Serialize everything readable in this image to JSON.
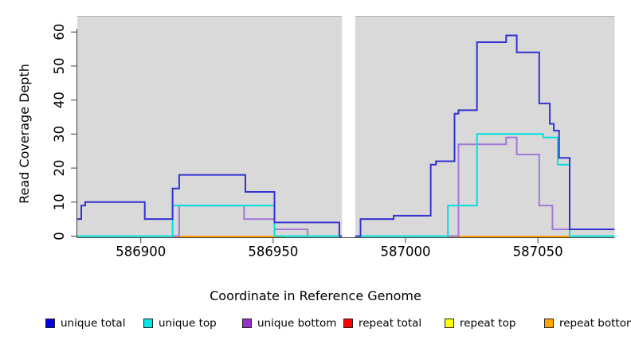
{
  "chart_data": {
    "type": "line",
    "subtype": "step-coverage",
    "title": "",
    "xlabel": "Coordinate in Reference Genome",
    "ylabel": "Read Coverage Depth",
    "xlim": [
      586876,
      587079
    ],
    "ylim": [
      0,
      63
    ],
    "x_ticks": [
      586900,
      586950,
      587000,
      587050
    ],
    "y_ticks": [
      0,
      10,
      20,
      30,
      40,
      50,
      60
    ],
    "grid": false,
    "plot_background": "#d9d9d9",
    "gap_region": [
      586976,
      586981
    ],
    "baseline": {
      "value": 0,
      "color": "#90ee90"
    },
    "series": [
      {
        "name": "unique total",
        "color": "#3232d2",
        "steps": [
          [
            586876,
            5
          ],
          [
            586877.5,
            9
          ],
          [
            586879,
            10
          ],
          [
            586901.5,
            5
          ],
          [
            586912,
            14
          ],
          [
            586914.5,
            18
          ],
          [
            586939.5,
            13
          ],
          [
            586950.5,
            4
          ],
          [
            586975,
            0
          ],
          [
            586983,
            5
          ],
          [
            586995.5,
            6
          ],
          [
            587009.5,
            21
          ],
          [
            587011.5,
            22
          ],
          [
            587018.5,
            36
          ],
          [
            587020,
            37
          ],
          [
            587027,
            57
          ],
          [
            587038,
            59
          ],
          [
            587042,
            54
          ],
          [
            587050.5,
            39
          ],
          [
            587054.5,
            33
          ],
          [
            587056,
            31
          ],
          [
            587058,
            23
          ],
          [
            587062,
            2
          ]
        ]
      },
      {
        "name": "unique top",
        "color": "#00e0e0",
        "steps": [
          [
            586876,
            0
          ],
          [
            586912,
            9
          ],
          [
            586950.5,
            0
          ],
          [
            587016,
            9
          ],
          [
            587027,
            30
          ],
          [
            587052,
            29
          ],
          [
            587057.5,
            21
          ],
          [
            587062,
            0
          ]
        ]
      },
      {
        "name": "unique bottom",
        "color": "#a478d8",
        "steps": [
          [
            586876,
            0
          ],
          [
            586914.5,
            9
          ],
          [
            586939,
            5
          ],
          [
            586950.5,
            2
          ],
          [
            586963,
            0
          ],
          [
            587020,
            27
          ],
          [
            587038,
            29
          ],
          [
            587042,
            24
          ],
          [
            587050.5,
            9
          ],
          [
            587055.5,
            2
          ]
        ]
      },
      {
        "name": "repeat total",
        "color": "#e00000",
        "steps": [
          [
            586876,
            0
          ]
        ]
      },
      {
        "name": "repeat top",
        "color": "#ffff00",
        "steps": [
          [
            586876,
            0
          ]
        ]
      },
      {
        "name": "repeat bottom",
        "color": "#ff9d00",
        "steps": [
          [
            586876,
            0
          ]
        ],
        "visible_spans": [
          [
            586912,
            586954
          ],
          [
            587016,
            587062
          ]
        ]
      }
    ],
    "legend": [
      {
        "label": "unique total",
        "color": "#0000e0"
      },
      {
        "label": "unique top",
        "color": "#00e8e8"
      },
      {
        "label": "unique bottom",
        "color": "#9932cc"
      },
      {
        "label": "repeat total",
        "color": "#ff0000"
      },
      {
        "label": "repeat top",
        "color": "#ffff00"
      },
      {
        "label": "repeat bottom",
        "color": "#ffa500"
      }
    ],
    "legend_position": "bottom"
  }
}
